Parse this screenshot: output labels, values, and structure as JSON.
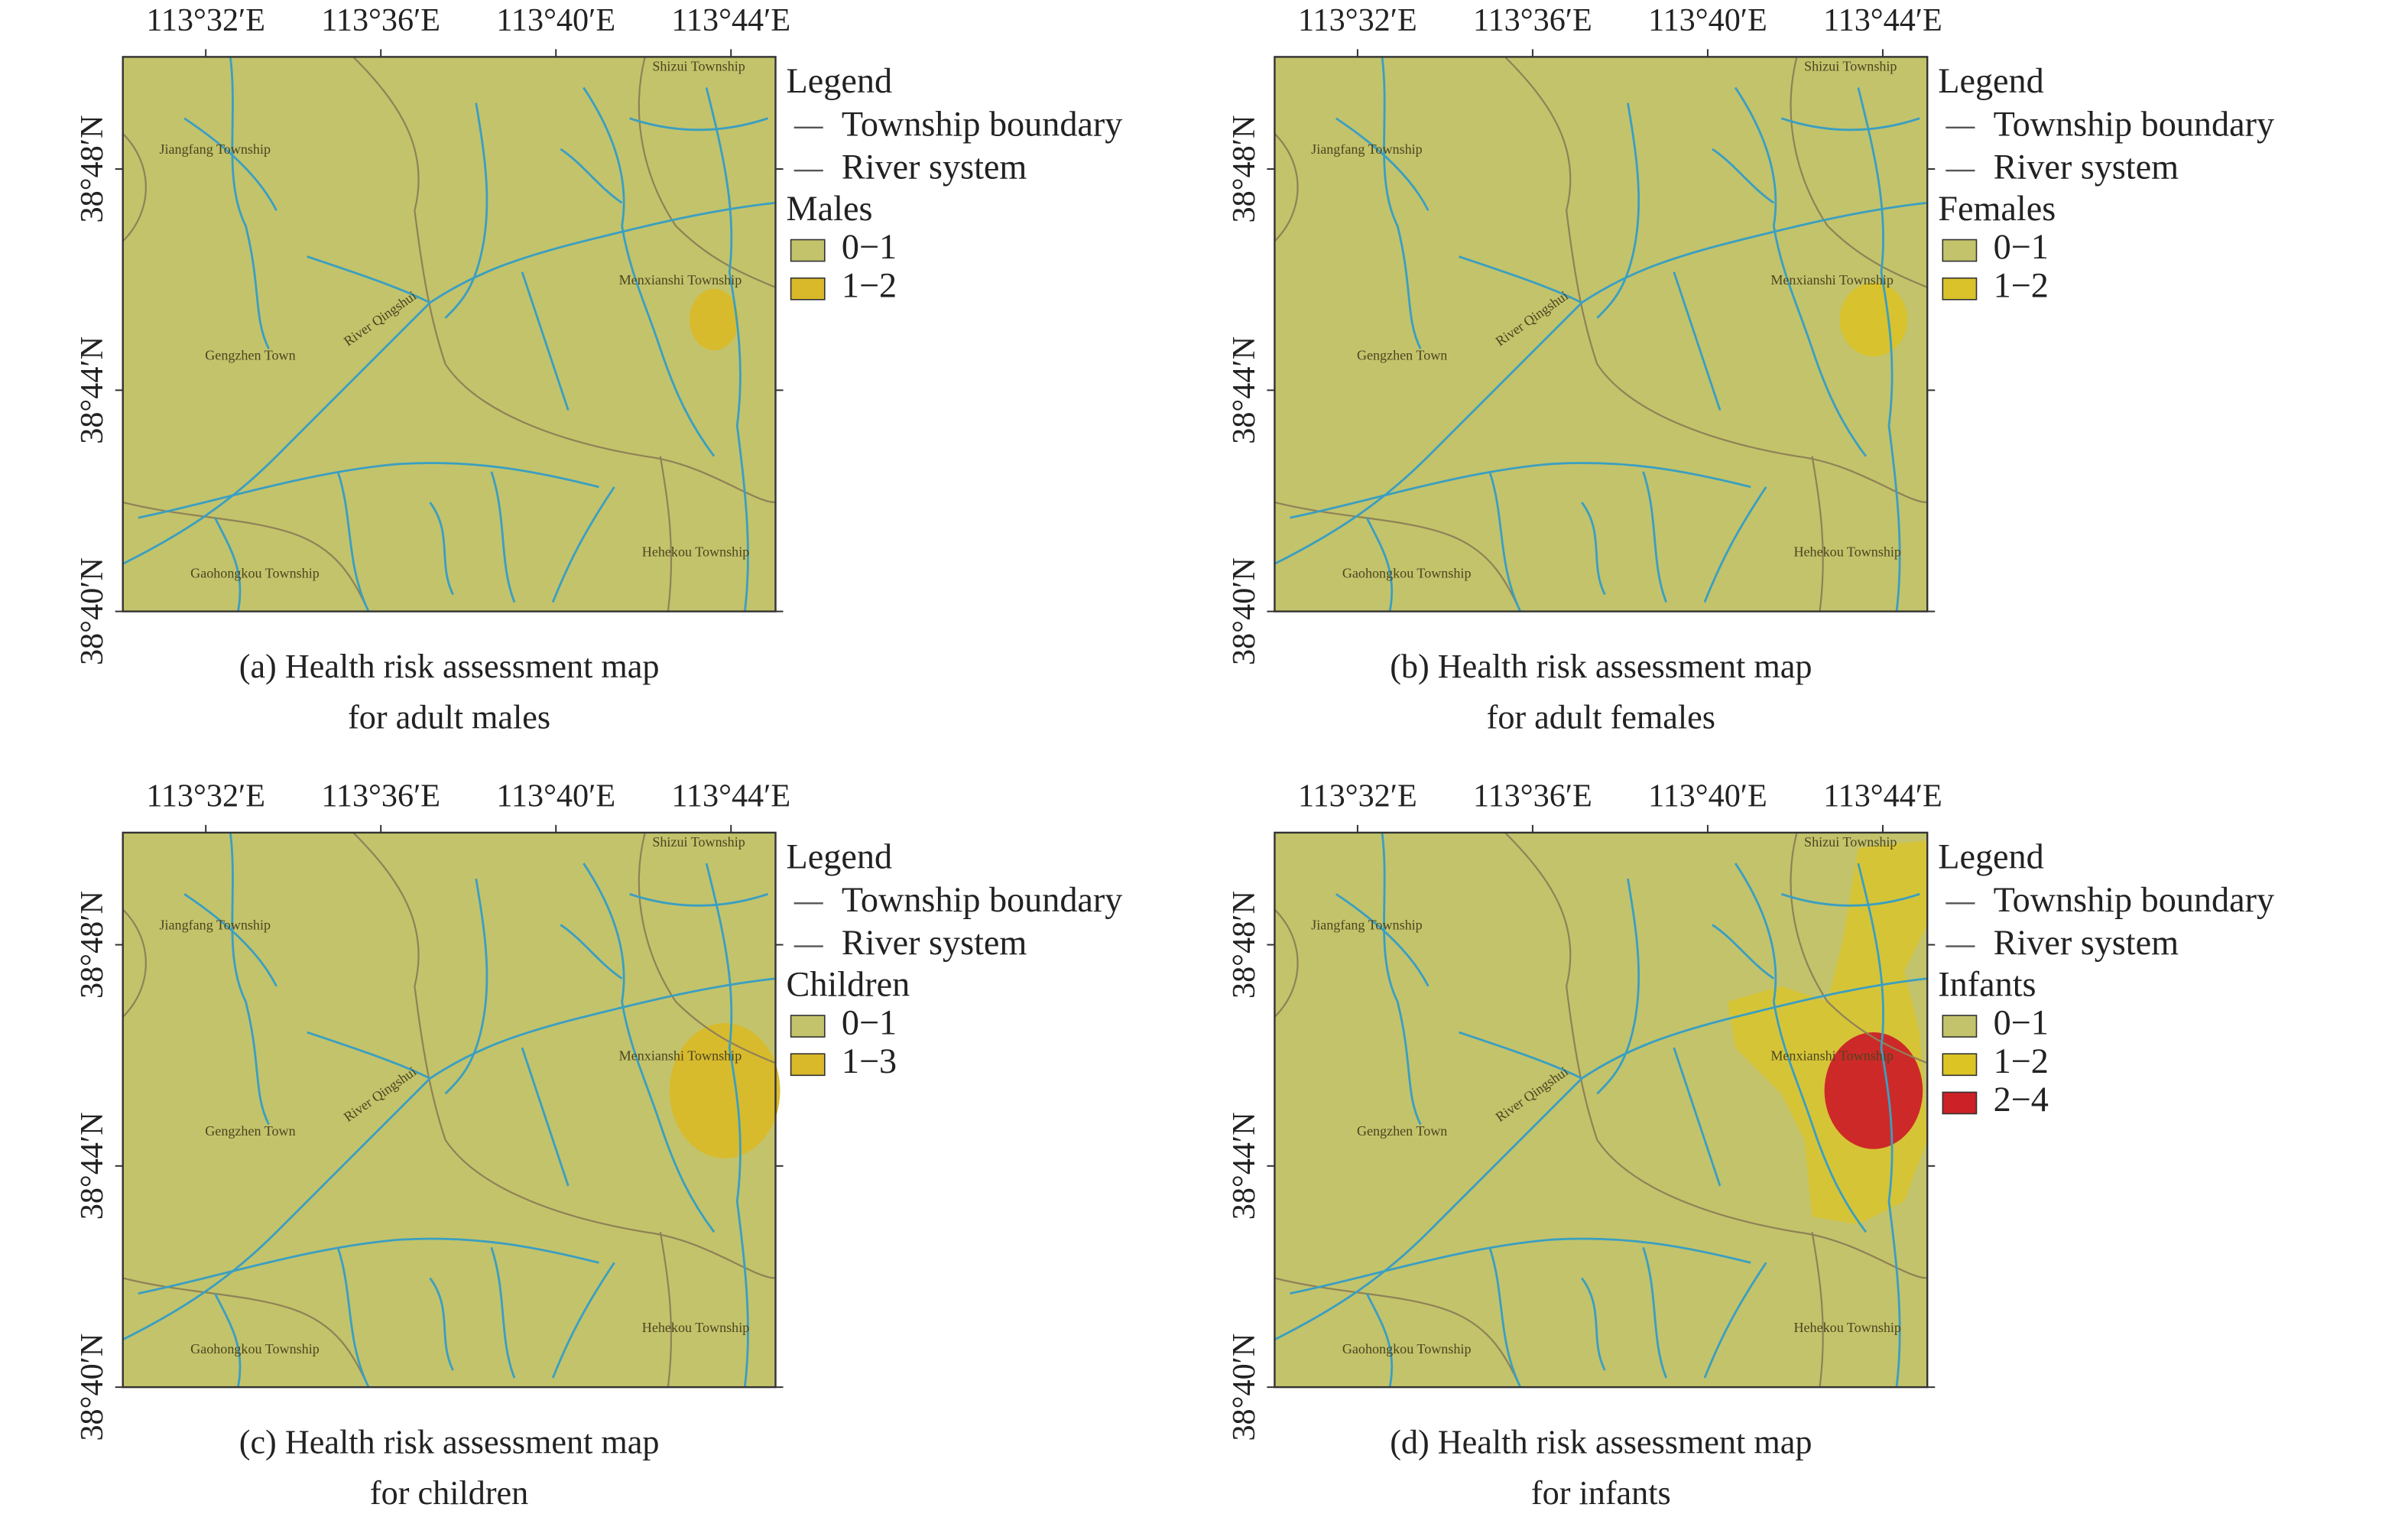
{
  "panels": [
    {
      "x_labels": [
        "113°32′E",
        "113°36′E",
        "113°40′E",
        "113°44′E"
      ],
      "y_labels": [
        "38°48′N",
        "38°44′N",
        "38°40′N"
      ],
      "places": [
        "Shizui Township",
        "Jiangfang Township",
        "Menxianshi Township",
        "Gengzhen Town",
        "River Qingshui",
        "Gaohongkou Township",
        "Hehekou Township"
      ],
      "legend": {
        "title": "Legend",
        "lines": [
          "Township boundary",
          "River system"
        ],
        "group": "Males",
        "classes": [
          {
            "label": "0−1",
            "color": "#c3c36b"
          },
          {
            "label": "1−2",
            "color": "#d9b92a"
          }
        ]
      },
      "caption": [
        "(a) Health risk assessment map",
        "for adult males"
      ]
    },
    {
      "x_labels": [
        "113°32′E",
        "113°36′E",
        "113°40′E",
        "113°44′E"
      ],
      "y_labels": [
        "38°48′N",
        "38°44′N",
        "38°40′N"
      ],
      "places": [
        "Shizui Township",
        "Jiangfang Township",
        "Menxianshi Township",
        "Gengzhen Town",
        "River Qingshui",
        "Gaohongkou Township",
        "Hehekou Township"
      ],
      "legend": {
        "title": "Legend",
        "lines": [
          "Township boundary",
          "River system"
        ],
        "group": "Females",
        "classes": [
          {
            "label": "0−1",
            "color": "#c3c36b"
          },
          {
            "label": "1−2",
            "color": "#d9c22a"
          }
        ]
      },
      "caption": [
        "(b) Health risk assessment map",
        "for adult females"
      ]
    },
    {
      "x_labels": [
        "113°32′E",
        "113°36′E",
        "113°40′E",
        "113°44′E"
      ],
      "y_labels": [
        "38°48′N",
        "38°44′N",
        "38°40′N"
      ],
      "places": [
        "Shizui Township",
        "Jiangfang Township",
        "Menxianshi Township",
        "Gengzhen Town",
        "River Qingshui",
        "Gaohongkou Township",
        "Hehekou Township"
      ],
      "legend": {
        "title": "Legend",
        "lines": [
          "Township boundary",
          "River system"
        ],
        "group": "Children",
        "classes": [
          {
            "label": "0−1",
            "color": "#c3c36b"
          },
          {
            "label": "1−3",
            "color": "#d9b92a"
          }
        ]
      },
      "caption": [
        "(c) Health risk assessment map",
        "for children"
      ]
    },
    {
      "x_labels": [
        "113°32′E",
        "113°36′E",
        "113°40′E",
        "113°44′E"
      ],
      "y_labels": [
        "38°48′N",
        "38°44′N",
        "38°40′N"
      ],
      "places": [
        "Shizui Township",
        "Jiangfang Township",
        "Menxianshi Township",
        "Gengzhen Town",
        "River Qingshui",
        "Gaohongkou Township",
        "Hehekou Township"
      ],
      "legend": {
        "title": "Legend",
        "lines": [
          "Township boundary",
          "River system"
        ],
        "group": "Infants",
        "classes": [
          {
            "label": "0−1",
            "color": "#c3c36b"
          },
          {
            "label": "1−2",
            "color": "#dcc425"
          },
          {
            "label": "2−4",
            "color": "#cc2127"
          }
        ]
      },
      "caption": [
        "(d) Health risk assessment map",
        "for infants"
      ]
    }
  ]
}
